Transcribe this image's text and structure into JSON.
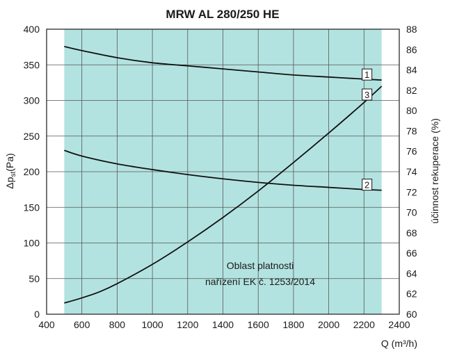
{
  "chart_data": {
    "type": "line",
    "title": "MRW AL 280/250 HE",
    "xlabel": "Q (m³/h)",
    "ylabel_left_prefix": "Δp",
    "ylabel_left_sub": "st",
    "ylabel_left_suffix": "(Pa)",
    "ylabel_right": "účinnost rekuperace (%)",
    "xlim": [
      400,
      2400
    ],
    "ylim_left": [
      0,
      400
    ],
    "ylim_right": [
      60,
      88
    ],
    "xticks": [
      400,
      600,
      800,
      1000,
      1200,
      1400,
      1600,
      1800,
      2000,
      2200,
      2400
    ],
    "yticks_left": [
      0,
      50,
      100,
      150,
      200,
      250,
      300,
      350,
      400
    ],
    "yticks_right": [
      60,
      62,
      64,
      66,
      68,
      70,
      72,
      74,
      76,
      78,
      80,
      82,
      84,
      86,
      88
    ],
    "grid": true,
    "region": {
      "x_range": [
        500,
        2300
      ],
      "label_line1": "Oblast platnosti",
      "label_line2": "nařízení EK č. 1253/2014",
      "color": "#b3e3e0"
    },
    "series": [
      {
        "name": "1",
        "axis": "right",
        "x": [
          500,
          600,
          800,
          1000,
          1200,
          1400,
          1600,
          1800,
          2000,
          2200,
          2300
        ],
        "values": [
          86.3,
          85.9,
          85.2,
          84.7,
          84.4,
          84.1,
          83.8,
          83.5,
          83.3,
          83.1,
          83.0
        ]
      },
      {
        "name": "2",
        "axis": "left",
        "x": [
          500,
          600,
          800,
          1000,
          1200,
          1400,
          1600,
          1800,
          2000,
          2200,
          2300
        ],
        "values": [
          230,
          222,
          211,
          203,
          196,
          190,
          185,
          181,
          178,
          175,
          174
        ]
      },
      {
        "name": "3",
        "axis": "right",
        "x": [
          500,
          600,
          700,
          800,
          1000,
          1200,
          1400,
          1600,
          1800,
          2000,
          2200,
          2300
        ],
        "values": [
          61.1,
          61.6,
          62.2,
          63.0,
          64.9,
          67.1,
          69.5,
          72.1,
          74.9,
          77.8,
          80.8,
          82.4
        ]
      }
    ]
  }
}
